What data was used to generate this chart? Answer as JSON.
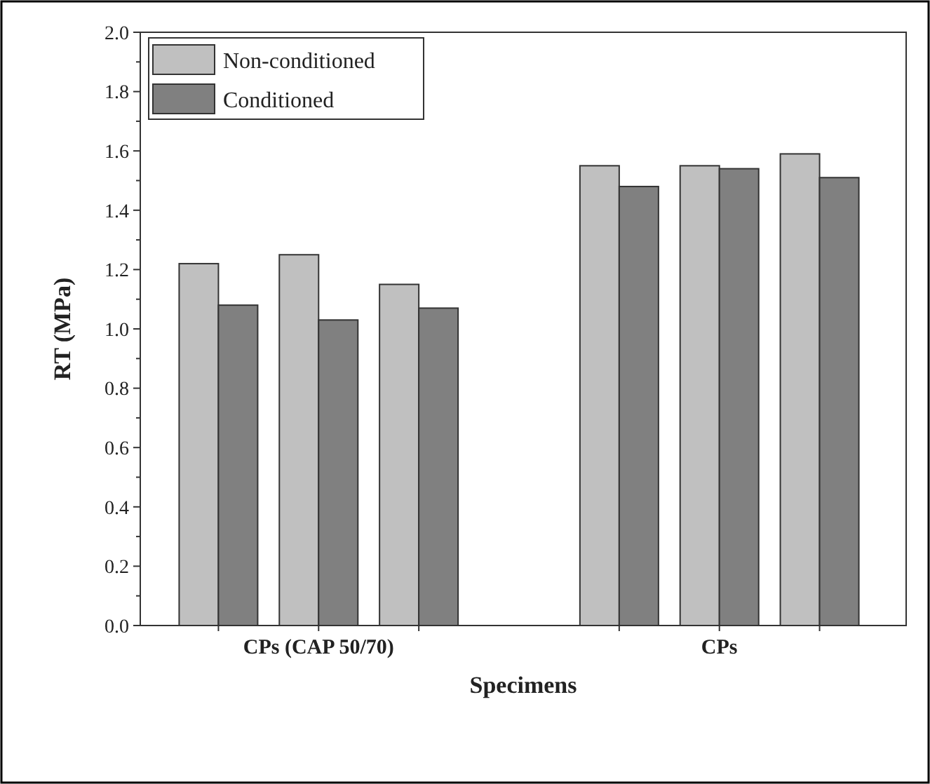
{
  "chart_data": {
    "type": "bar",
    "xlabel": "Specimens",
    "ylabel": "RT (MPa)",
    "categories": [
      null,
      "CPs (CAP 50/70)",
      null,
      null,
      "CPs",
      null
    ],
    "series": [
      {
        "name": "Non-conditioned",
        "color": "#c0c0c0",
        "values": [
          1.22,
          1.25,
          1.15,
          1.55,
          1.55,
          1.59
        ]
      },
      {
        "name": "Conditioned",
        "color": "#808080",
        "values": [
          1.08,
          1.03,
          1.07,
          1.48,
          1.54,
          1.51
        ]
      }
    ],
    "ylim": [
      0,
      2
    ],
    "yticks": [
      {
        "value": 0,
        "label": "0.0"
      },
      {
        "value": 0.2,
        "label": "0.2"
      },
      {
        "value": 0.4,
        "label": "0.4"
      },
      {
        "value": 0.6,
        "label": "0.6"
      },
      {
        "value": 0.8,
        "label": "0.8"
      },
      {
        "value": 1,
        "label": "1.0"
      },
      {
        "value": 1.2,
        "label": "1.2"
      },
      {
        "value": 1.4,
        "label": "1.4"
      },
      {
        "value": 1.6,
        "label": "1.6"
      },
      {
        "value": 1.8,
        "label": "1.8"
      },
      {
        "value": 2,
        "label": "2.0"
      }
    ],
    "legend": "top left",
    "grid": false
  }
}
